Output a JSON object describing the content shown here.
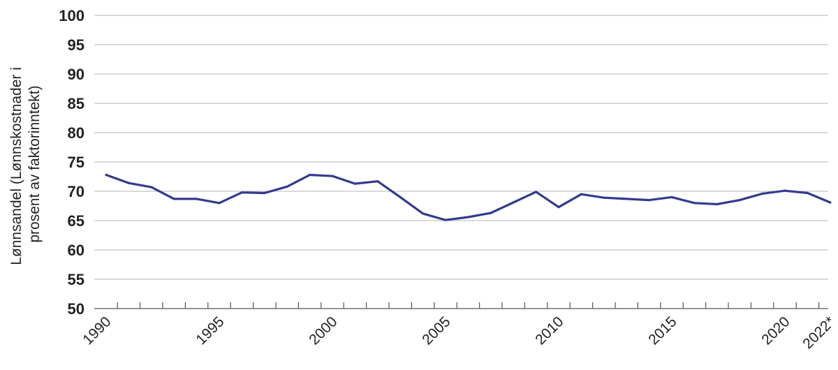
{
  "chart_data": {
    "type": "line",
    "title": "",
    "ylabel_lines": [
      "Lønnsandel (Lønnskostnader i",
      "prosent av faktorinntekt)"
    ],
    "xlabel": "",
    "ylim": [
      50,
      100
    ],
    "yticks": [
      50,
      55,
      60,
      65,
      70,
      75,
      80,
      85,
      90,
      95,
      100
    ],
    "x": [
      "1990",
      "1991",
      "1992",
      "1993",
      "1994",
      "1995",
      "1996",
      "1997",
      "1998",
      "1999",
      "2000",
      "2001",
      "2002",
      "2003",
      "2004",
      "2005",
      "2006",
      "2007",
      "2008",
      "2009",
      "2010",
      "2011",
      "2012",
      "2013",
      "2014",
      "2015",
      "2016",
      "2017",
      "2018",
      "2019",
      "2020",
      "2021",
      "2022*"
    ],
    "xtick_labels": [
      "1990",
      "1995",
      "2000",
      "2005",
      "2010",
      "2015",
      "2020",
      "2022*"
    ],
    "grid": true,
    "series": [
      {
        "color": "#333a8f",
        "values": [
          72.8,
          71.4,
          70.7,
          68.7,
          68.7,
          68.0,
          69.8,
          69.7,
          70.8,
          72.8,
          72.6,
          71.3,
          71.7,
          69.0,
          66.2,
          65.1,
          65.6,
          66.3,
          68.1,
          69.9,
          67.3,
          69.5,
          68.9,
          68.7,
          68.5,
          69.0,
          68.0,
          67.8,
          68.5,
          69.6,
          70.1,
          69.7,
          68.1
        ]
      }
    ]
  }
}
